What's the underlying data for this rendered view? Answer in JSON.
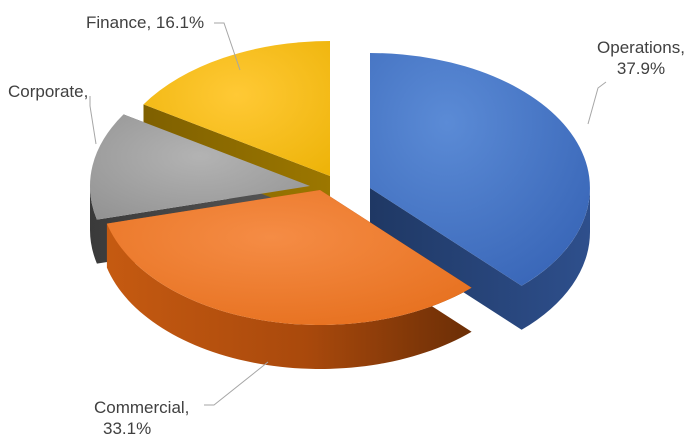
{
  "chart_data": {
    "type": "pie",
    "style": "3d-exploded",
    "slices": [
      {
        "name": "Operations",
        "value": 37.9,
        "value_label": "37.9%",
        "color": "#4472C4"
      },
      {
        "name": "Commercial",
        "value": 33.1,
        "value_label": "33.1%",
        "color": "#ED7D31"
      },
      {
        "name": "Corporate",
        "value": 12.9,
        "value_label": "",
        "color": "#A5A5A5"
      },
      {
        "name": "Finance",
        "value": 16.1,
        "value_label": "16.1%",
        "color": "#FFC000"
      }
    ],
    "labels": {
      "operations_line1": "Operations,",
      "operations_line2": "37.9%",
      "commercial_line1": "Commercial,",
      "commercial_line2": "33.1%",
      "corporate_line1": "Corporate,",
      "finance_line1": "Finance, 16.1%"
    },
    "legend": "none",
    "label_color": "#404040",
    "leader_color": "#A6A6A6"
  }
}
